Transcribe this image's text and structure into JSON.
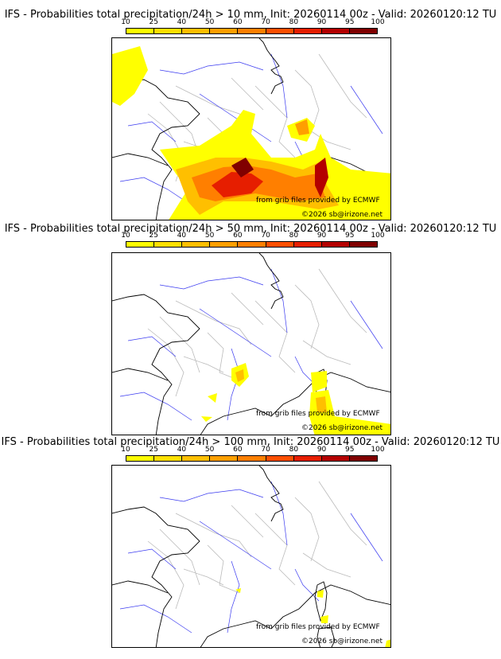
{
  "panels": [
    {
      "title": "IFS - Probabilities total precipitation/24h > 10 mm, Init: 20260114 00z - Valid: 20260120:12 TU"
    },
    {
      "title": "IFS - Probabilities total precipitation/24h > 50 mm, Init: 20260114 00z - Valid: 20260120:12 TU"
    },
    {
      "title": "IFS - Probabilities total precipitation/24h > 100 mm, Init: 20260114 00z - Valid: 20260120:12 TU"
    }
  ],
  "colorbar": {
    "ticks": [
      "10",
      "25",
      "40",
      "50",
      "60",
      "70",
      "80",
      "90",
      "95",
      "100"
    ],
    "colors": [
      "#ffff00",
      "#ffe000",
      "#ffbf00",
      "#ff9f00",
      "#ff7f00",
      "#ff4f00",
      "#e61e00",
      "#b40000",
      "#800000"
    ]
  },
  "credits": {
    "source": "from grib files provided by ECMWF",
    "copyright": "©2026 sb@irizone.net"
  }
}
